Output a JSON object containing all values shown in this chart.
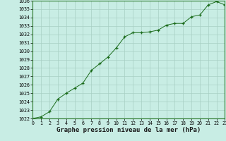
{
  "x": [
    0,
    1,
    2,
    3,
    4,
    5,
    6,
    7,
    8,
    9,
    10,
    11,
    12,
    13,
    14,
    15,
    16,
    17,
    18,
    19,
    20,
    21,
    22,
    23
  ],
  "y": [
    1022.0,
    1022.2,
    1022.8,
    1024.3,
    1025.0,
    1025.6,
    1026.2,
    1027.7,
    1028.5,
    1029.3,
    1030.4,
    1031.7,
    1032.2,
    1032.2,
    1032.3,
    1032.5,
    1033.1,
    1033.3,
    1033.3,
    1034.1,
    1034.3,
    1035.5,
    1035.9,
    1035.5
  ],
  "ylim": [
    1022,
    1036
  ],
  "xlim": [
    0,
    23
  ],
  "yticks": [
    1022,
    1023,
    1024,
    1025,
    1026,
    1027,
    1028,
    1029,
    1030,
    1031,
    1032,
    1033,
    1034,
    1035,
    1036
  ],
  "xticks": [
    0,
    1,
    2,
    3,
    4,
    5,
    6,
    7,
    8,
    9,
    10,
    11,
    12,
    13,
    14,
    15,
    16,
    17,
    18,
    19,
    20,
    21,
    22,
    23
  ],
  "line_color": "#1a6b1a",
  "marker_color": "#1a6b1a",
  "bg_color": "#c8ede4",
  "grid_color": "#a8cfc4",
  "xlabel": "Graphe pression niveau de la mer (hPa)",
  "tick_fontsize": 4.8,
  "label_fontsize": 6.5
}
